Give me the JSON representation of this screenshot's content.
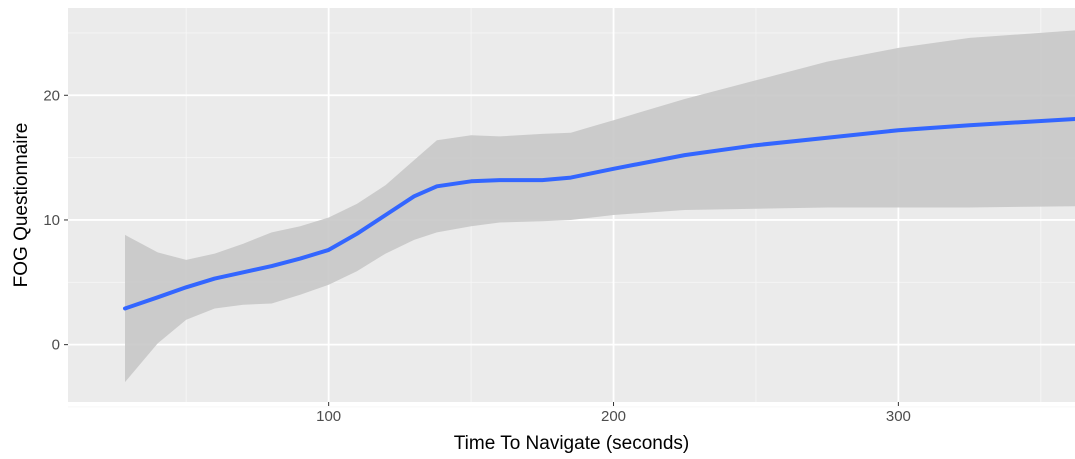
{
  "chart_data": {
    "type": "line",
    "title": "",
    "xlabel": "Time To Navigate (seconds)",
    "ylabel": "FOG Questionnaire",
    "xlim": [
      8.5,
      362
    ],
    "ylim": [
      -4.6,
      27.0
    ],
    "x_ticks": [
      100,
      200,
      300
    ],
    "x_tick_labels": [
      "100",
      "200",
      "300"
    ],
    "x_minor_ticks": [
      50,
      150,
      250,
      350
    ],
    "y_ticks": [
      0,
      10,
      20
    ],
    "y_tick_labels": [
      "0",
      "10",
      "20"
    ],
    "y_minor_ticks": [
      -5,
      5,
      15,
      25
    ],
    "grid": true,
    "legend": "none",
    "colors": {
      "panel_background": "#ebebeb",
      "grid_major": "#ffffff",
      "grid_minor": "#f6f6f6",
      "line": "#3366ff",
      "ribbon": "#c8c8c8",
      "axis_text": "#4d4d4d",
      "axis_title": "#000000"
    },
    "series": [
      {
        "x": [
          28.5,
          40,
          50,
          60,
          70,
          80,
          90,
          100,
          110,
          120,
          130,
          138,
          150,
          160,
          175,
          185,
          200,
          225,
          250,
          275,
          300,
          325,
          362
        ],
        "y": [
          2.9,
          3.8,
          4.6,
          5.3,
          5.8,
          6.3,
          6.9,
          7.6,
          8.9,
          10.4,
          11.9,
          12.7,
          13.1,
          13.2,
          13.2,
          13.4,
          14.1,
          15.2,
          16.0,
          16.6,
          17.2,
          17.6,
          18.1
        ],
        "lower": [
          -3.0,
          0.1,
          2.0,
          2.9,
          3.2,
          3.3,
          4.0,
          4.8,
          5.9,
          7.3,
          8.4,
          9.0,
          9.5,
          9.8,
          9.9,
          10.0,
          10.4,
          10.8,
          10.9,
          11.0,
          11.0,
          11.0,
          11.1
        ],
        "upper": [
          8.8,
          7.4,
          6.8,
          7.3,
          8.1,
          9.0,
          9.5,
          10.2,
          11.3,
          12.8,
          14.8,
          16.4,
          16.8,
          16.7,
          16.9,
          17.0,
          18.0,
          19.7,
          21.2,
          22.7,
          23.8,
          24.6,
          25.2
        ]
      }
    ]
  }
}
